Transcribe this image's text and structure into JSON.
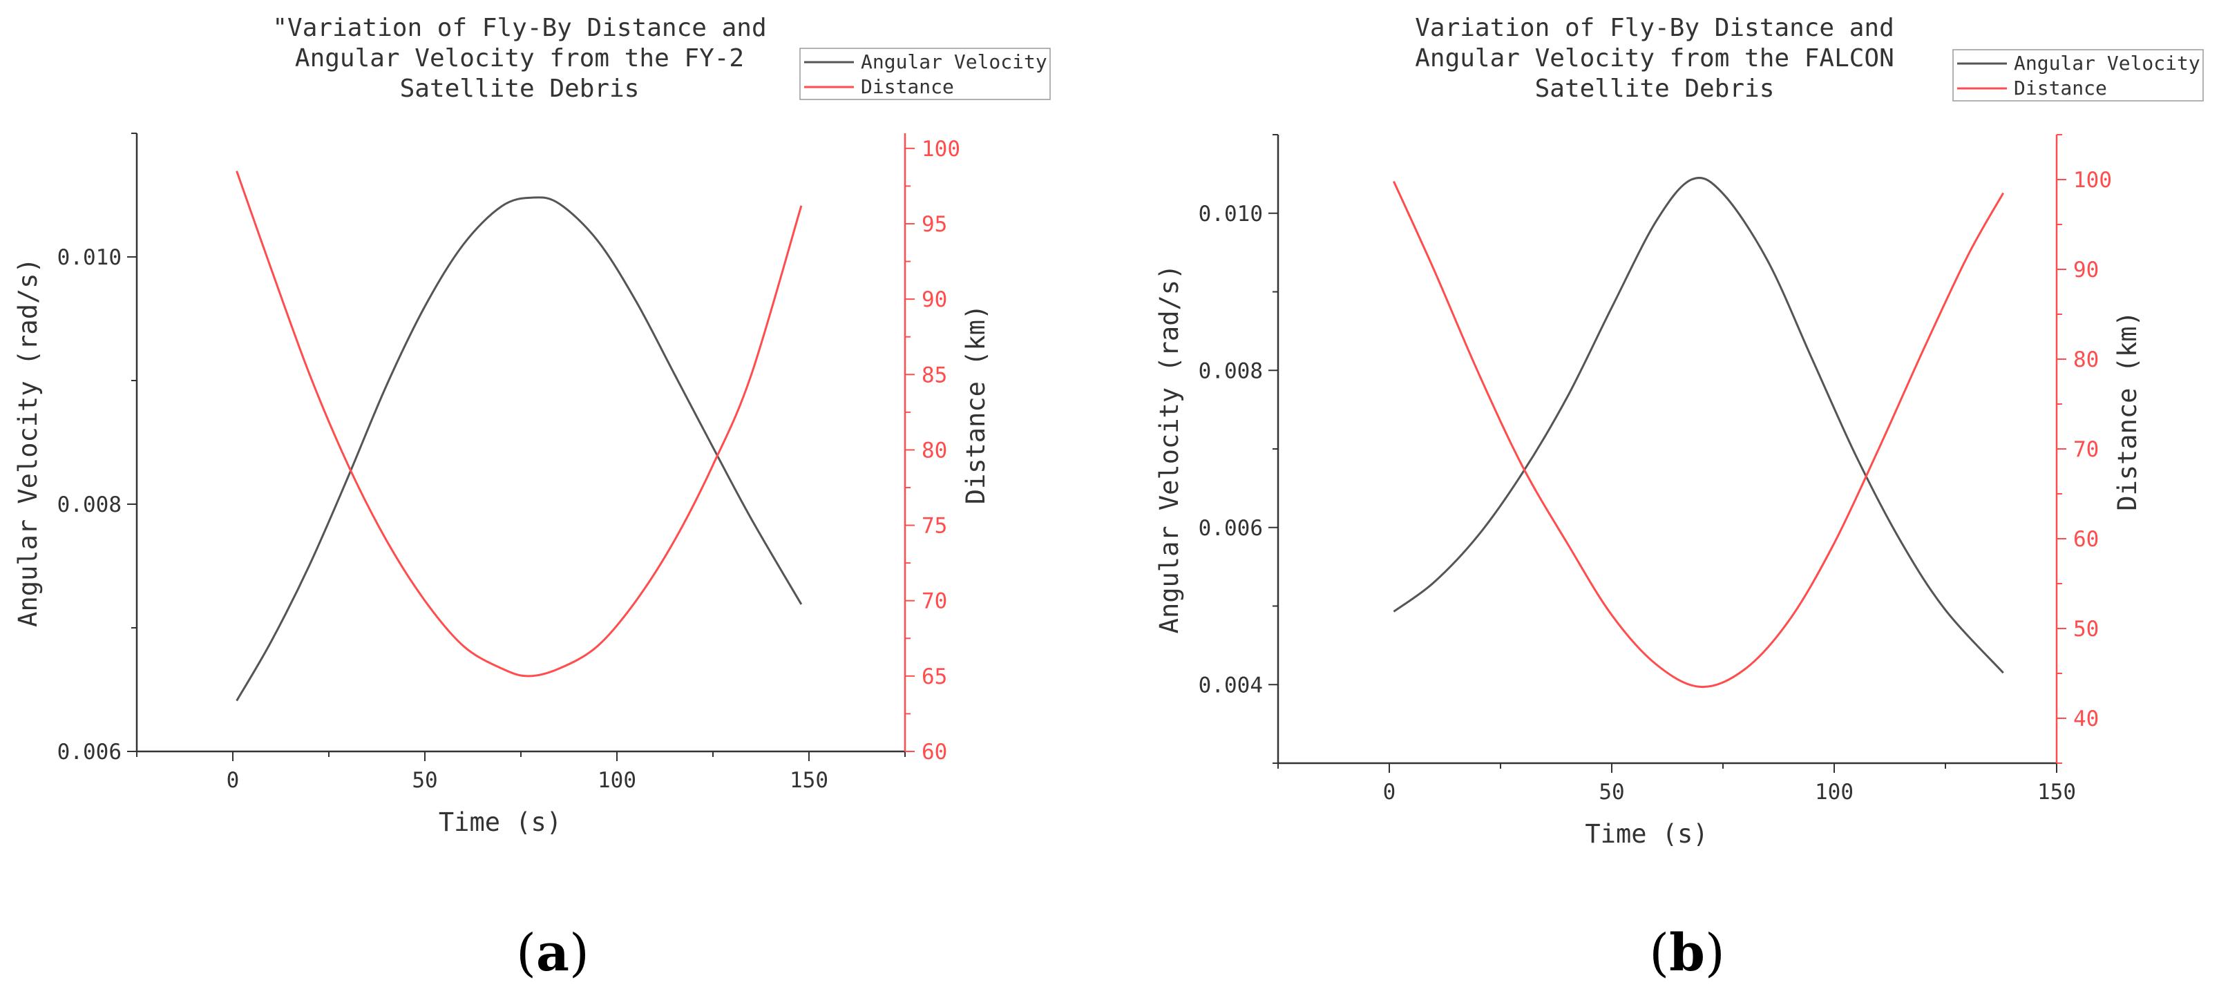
{
  "figure": {
    "panel_a_label": "a",
    "panel_b_label": "b"
  },
  "colors": {
    "angular_velocity": "#555555",
    "distance": "#ff4d4d",
    "axis": "#333333"
  },
  "chart_data": [
    {
      "type": "line",
      "title_lines": [
        "\"Variation of Fly-By Distance and",
        "Angular Velocity from the FY-2",
        "Satellite Debris"
      ],
      "xlabel": "Time (s)",
      "ylabel_left": "Angular Velocity (rad/s)",
      "ylabel_right": "Distance (km)",
      "xlim": [
        -25,
        175
      ],
      "ylim_left": [
        0.006,
        0.011
      ],
      "ylim_right": [
        60,
        101
      ],
      "x_ticks": [
        0,
        50,
        100,
        150
      ],
      "x_tick_labels": [
        "0",
        "50",
        "100",
        "150"
      ],
      "y_left_ticks": [
        0.006,
        0.008,
        0.01
      ],
      "y_left_tick_labels": [
        "0.006",
        "0.008",
        "0.010"
      ],
      "y_right_ticks": [
        60,
        65,
        70,
        75,
        80,
        85,
        90,
        95,
        100
      ],
      "y_right_tick_labels": [
        "60",
        "65",
        "70",
        "75",
        "80",
        "85",
        "90",
        "95",
        "100"
      ],
      "legend": [
        "Angular Velocity",
        "Distance"
      ],
      "legend_position": "top-right",
      "series": [
        {
          "name": "Angular Velocity",
          "axis": "left",
          "x": [
            1,
            10,
            20,
            30,
            40,
            50,
            60,
            70,
            78,
            85,
            95,
            105,
            115,
            125,
            135,
            148
          ],
          "y": [
            0.00641,
            0.00689,
            0.00751,
            0.00822,
            0.00896,
            0.0096,
            0.0101,
            0.01041,
            0.01048,
            0.01043,
            0.01013,
            0.00964,
            0.00905,
            0.00846,
            0.00788,
            0.00719
          ]
        },
        {
          "name": "Distance",
          "axis": "right",
          "x": [
            1,
            10,
            20,
            30,
            40,
            50,
            60,
            70,
            77,
            85,
            95,
            105,
            115,
            125,
            135,
            148
          ],
          "y": [
            98.5,
            92.0,
            85.0,
            79.0,
            74.0,
            70.0,
            67.0,
            65.5,
            65.0,
            65.5,
            67.0,
            70.0,
            74.0,
            79.0,
            85.0,
            96.2
          ]
        }
      ]
    },
    {
      "type": "line",
      "title_lines": [
        "Variation of Fly-By Distance and",
        "Angular Velocity from the FALCON",
        "Satellite Debris"
      ],
      "xlabel": "Time (s)",
      "ylabel_left": "Angular Velocity (rad/s)",
      "ylabel_right": "Distance (km)",
      "xlim": [
        -25,
        150
      ],
      "ylim_left": [
        0.003,
        0.011
      ],
      "ylim_right": [
        35,
        105
      ],
      "x_ticks": [
        0,
        50,
        100,
        150
      ],
      "x_tick_labels": [
        "0",
        "50",
        "100",
        "150"
      ],
      "y_left_ticks": [
        0.004,
        0.006,
        0.008,
        0.01
      ],
      "y_left_tick_labels": [
        "0.004",
        "0.006",
        "0.008",
        "0.010"
      ],
      "y_right_ticks": [
        40,
        50,
        60,
        70,
        80,
        90,
        100
      ],
      "y_right_tick_labels": [
        "40",
        "50",
        "60",
        "70",
        "80",
        "90",
        "100"
      ],
      "legend": [
        "Angular Velocity",
        "Distance"
      ],
      "legend_position": "top-right",
      "series": [
        {
          "name": "Angular Velocity",
          "axis": "left",
          "x": [
            1,
            10,
            20,
            30,
            40,
            50,
            60,
            68,
            75,
            85,
            95,
            105,
            115,
            125,
            138
          ],
          "y": [
            0.00493,
            0.0053,
            0.0059,
            0.0067,
            0.00766,
            0.0088,
            0.0099,
            0.01043,
            0.01025,
            0.0094,
            0.00815,
            0.0069,
            0.00582,
            0.00495,
            0.00415
          ]
        },
        {
          "name": "Distance",
          "axis": "right",
          "x": [
            1,
            10,
            20,
            30,
            40,
            50,
            60,
            70,
            80,
            90,
            100,
            110,
            120,
            130,
            138
          ],
          "y": [
            99.8,
            90.0,
            78.5,
            68.0,
            59.5,
            51.5,
            46.0,
            43.5,
            45.5,
            51.0,
            59.5,
            70.0,
            81.0,
            91.5,
            98.5
          ]
        }
      ]
    }
  ]
}
